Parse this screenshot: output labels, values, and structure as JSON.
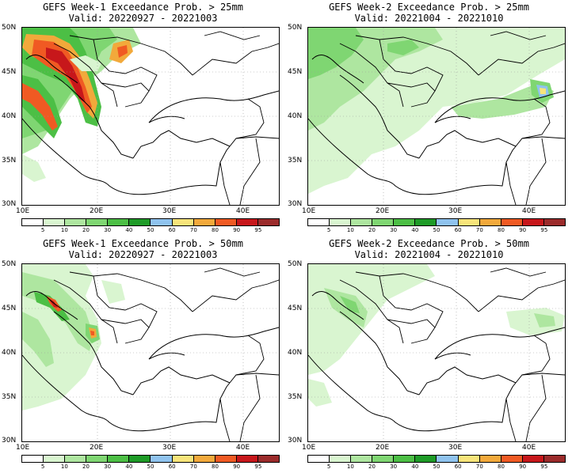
{
  "colors": [
    "#ffffff",
    "#d9f5d0",
    "#aee6a0",
    "#7fd672",
    "#4cbf45",
    "#1e9b27",
    "#8fc3ee",
    "#f7e47a",
    "#f2a93b",
    "#f05a23",
    "#c7171b",
    "#9b2b2b"
  ],
  "colorbar_labels": [
    "5",
    "10",
    "20",
    "30",
    "40",
    "50",
    "60",
    "70",
    "80",
    "90",
    "95"
  ],
  "axes": {
    "lat_labels": [
      "50N",
      "45N",
      "40N",
      "35N",
      "30N"
    ],
    "lon_labels": [
      "10E",
      "20E",
      "30E",
      "40E"
    ]
  },
  "panels": [
    {
      "title": "GEFS Week-1 Exceedance Prob. > 25mm",
      "valid": "Valid: 20220927 - 20221003"
    },
    {
      "title": "GEFS Week-2 Exceedance Prob. > 25mm",
      "valid": "Valid: 20221004 - 20221010"
    },
    {
      "title": "GEFS Week-1 Exceedance Prob. > 50mm",
      "valid": "Valid: 20220927 - 20221003"
    },
    {
      "title": "GEFS Week-2 Exceedance Prob. > 50mm",
      "valid": "Valid: 20221004 - 20221010"
    }
  ]
}
